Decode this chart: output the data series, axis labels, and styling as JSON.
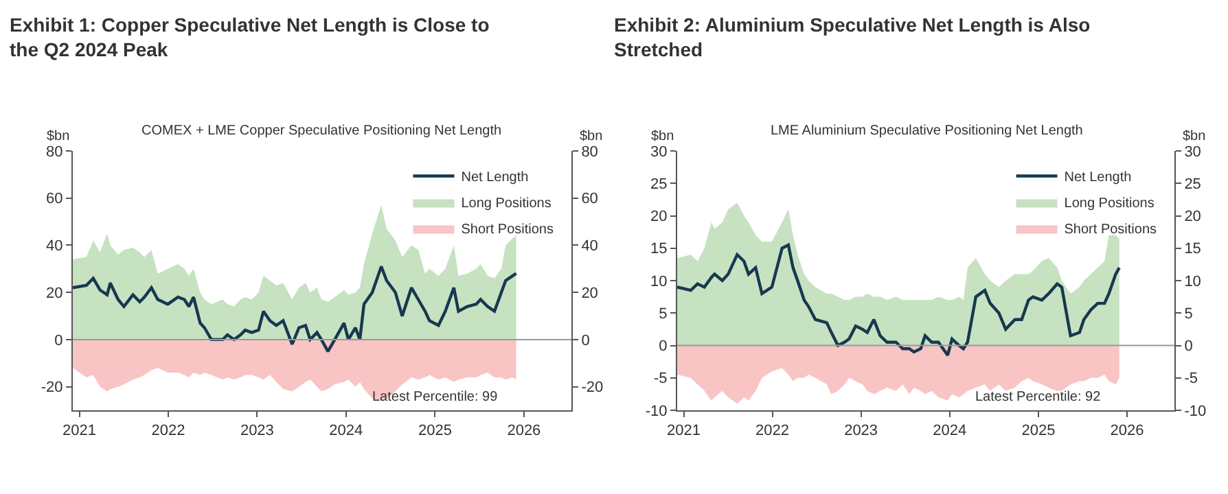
{
  "chart_data": [
    {
      "type": "area",
      "title": "Exhibit 1: Copper Speculative Net Length is Close to the Q2 2024 Peak",
      "subtitle": "COMEX + LME Copper Speculative Positioning Net Length",
      "ylabel": "$bn",
      "y2label": "$bn",
      "annotations": [
        "Latest Percentile: 99"
      ],
      "x": [
        "2020-12-05",
        "2021-01-30",
        "2021-02-27",
        "2021-03-27",
        "2021-04-25",
        "2021-05-08",
        "2021-06-09",
        "2021-07-03",
        "2021-08-09",
        "2021-09-06",
        "2021-09-25",
        "2021-10-24",
        "2021-11-19",
        "2021-12-30",
        "2022-02-10",
        "2022-03-08",
        "2022-03-27",
        "2022-04-15",
        "2022-05-12",
        "2022-05-30",
        "2022-06-27",
        "2022-08-13",
        "2022-09-01",
        "2022-09-28",
        "2022-10-25",
        "2022-11-13",
        "2022-12-10",
        "2023-01-07",
        "2023-01-27",
        "2023-02-23",
        "2023-03-21",
        "2023-04-18",
        "2023-05-25",
        "2023-06-22",
        "2023-07-19",
        "2023-08-07",
        "2023-09-04",
        "2023-09-22",
        "2023-10-19",
        "2023-11-16",
        "2023-12-24",
        "2024-01-11",
        "2024-02-09",
        "2024-02-27",
        "2024-03-15",
        "2024-04-18",
        "2024-05-25",
        "2024-06-16",
        "2024-07-22",
        "2024-08-19",
        "2024-09-26",
        "2024-10-24",
        "2024-11-21",
        "2024-12-09",
        "2025-01-15",
        "2025-02-12",
        "2025-03-19",
        "2025-04-07",
        "2025-05-13",
        "2025-06-19",
        "2025-07-07",
        "2025-08-05",
        "2025-09-02",
        "2025-09-30",
        "2025-10-18",
        "2025-11-15",
        "2025-11-30"
      ],
      "series": [
        {
          "name": "Net Length",
          "type": "line",
          "color": "#17384f",
          "values": [
            22,
            23,
            26,
            21,
            19,
            24,
            17,
            14,
            19,
            16,
            18,
            22,
            17,
            15,
            18,
            17,
            14,
            18,
            7,
            5,
            0,
            0,
            2,
            0,
            2,
            4,
            3,
            4,
            12,
            8,
            6,
            8,
            -2,
            5,
            6,
            0,
            3,
            0,
            -5,
            0,
            7,
            0,
            5,
            0,
            15,
            20,
            31,
            25,
            20,
            10,
            22,
            17,
            12,
            8,
            6,
            12,
            22,
            12,
            14,
            15,
            17,
            14,
            12,
            20,
            25,
            27,
            28
          ]
        },
        {
          "name": "Long Positions",
          "color": "#c6e2c1",
          "values": [
            34,
            35,
            42,
            37,
            45,
            40,
            36,
            38,
            39,
            37,
            35,
            38,
            28,
            30,
            32,
            30,
            27,
            30,
            20,
            17,
            15,
            17,
            15,
            14,
            17,
            18,
            17,
            20,
            27,
            25,
            23,
            24,
            17,
            22,
            24,
            20,
            22,
            17,
            16,
            18,
            21,
            19,
            20,
            22,
            32,
            45,
            57,
            47,
            42,
            35,
            40,
            38,
            28,
            30,
            27,
            30,
            40,
            27,
            28,
            30,
            32,
            27,
            26,
            30,
            40,
            43,
            44
          ]
        },
        {
          "name": "Short Positions",
          "color": "#f8c4c4",
          "values": [
            -12,
            -16,
            -15,
            -20,
            -22,
            -21,
            -20,
            -19,
            -17,
            -16,
            -15,
            -13,
            -12,
            -14,
            -14,
            -15,
            -16,
            -14,
            -15,
            -14,
            -15,
            -17,
            -16,
            -17,
            -16,
            -15,
            -15,
            -16,
            -17,
            -15,
            -18,
            -21,
            -22,
            -20,
            -18,
            -17,
            -20,
            -22,
            -21,
            -19,
            -18,
            -17,
            -20,
            -18,
            -21,
            -25,
            -26,
            -25,
            -22,
            -19,
            -16,
            -17,
            -16,
            -15,
            -17,
            -16,
            -18,
            -17,
            -16,
            -16,
            -15,
            -14,
            -16,
            -16,
            -17,
            -16,
            -17
          ]
        }
      ],
      "xlim": [
        "2020-12-05",
        "2026-07-15"
      ],
      "xticks": [
        "2021",
        "2022",
        "2023",
        "2024",
        "2025",
        "2026"
      ],
      "ylim": [
        -30,
        80
      ],
      "yticks": [
        -20,
        0,
        20,
        40,
        60,
        80
      ],
      "y2lim": [
        -30,
        80
      ],
      "y2ticks": [
        -20,
        0,
        20,
        40,
        60,
        80
      ],
      "ref_lines": [
        {
          "axis": "y",
          "value": 0,
          "color": "#999999"
        }
      ],
      "legend": "top right"
    },
    {
      "type": "area",
      "title": "Exhibit 2: Aluminium Speculative Net Length is Also Stretched",
      "subtitle": "LME Aluminium Speculative Positioning Net Length",
      "ylabel": "$bn",
      "y2label": "$bn",
      "annotations": [
        "Latest Percentile: 92"
      ],
      "x": [
        "2020-12-05",
        "2021-01-30",
        "2021-02-27",
        "2021-03-27",
        "2021-04-25",
        "2021-05-08",
        "2021-06-09",
        "2021-07-03",
        "2021-08-09",
        "2021-09-06",
        "2021-09-25",
        "2021-10-24",
        "2021-11-19",
        "2021-12-30",
        "2022-02-10",
        "2022-03-08",
        "2022-03-27",
        "2022-04-15",
        "2022-05-12",
        "2022-05-30",
        "2022-06-27",
        "2022-08-13",
        "2022-09-01",
        "2022-09-28",
        "2022-10-25",
        "2022-11-13",
        "2022-12-10",
        "2023-01-07",
        "2023-01-27",
        "2023-02-23",
        "2023-03-21",
        "2023-04-18",
        "2023-05-25",
        "2023-06-22",
        "2023-07-19",
        "2023-08-07",
        "2023-09-04",
        "2023-09-22",
        "2023-10-19",
        "2023-11-16",
        "2023-12-24",
        "2024-01-11",
        "2024-02-09",
        "2024-02-27",
        "2024-03-15",
        "2024-04-18",
        "2024-05-25",
        "2024-06-16",
        "2024-07-22",
        "2024-08-19",
        "2024-09-26",
        "2024-10-24",
        "2024-11-21",
        "2024-12-09",
        "2025-01-15",
        "2025-02-12",
        "2025-03-19",
        "2025-04-07",
        "2025-05-13",
        "2025-06-19",
        "2025-07-07",
        "2025-08-05",
        "2025-09-02",
        "2025-09-30",
        "2025-10-18",
        "2025-11-15",
        "2025-11-30"
      ],
      "series": [
        {
          "name": "Net Length",
          "type": "line",
          "color": "#17384f",
          "values": [
            9,
            8.5,
            9.5,
            9,
            10.5,
            11,
            10,
            11,
            14,
            13,
            11,
            12,
            8,
            9,
            15,
            15.5,
            12,
            10,
            7,
            6,
            4,
            3.5,
            2,
            0,
            0.5,
            1,
            3,
            2.5,
            2,
            4,
            1.5,
            0.5,
            0.5,
            -0.5,
            -0.5,
            -1,
            -0.5,
            1.5,
            0.5,
            0.5,
            -1.5,
            1,
            0,
            -0.5,
            0.5,
            7.5,
            8.5,
            6.5,
            5,
            2.5,
            4,
            4,
            7,
            7.5,
            7,
            8,
            9.5,
            9,
            1.5,
            2,
            4,
            5.5,
            6.5,
            6.5,
            8,
            11,
            12
          ]
        },
        {
          "name": "Long Positions",
          "color": "#c6e2c1",
          "values": [
            13.5,
            14,
            13,
            15,
            19,
            18,
            19,
            21,
            22,
            20,
            19,
            17,
            16,
            16,
            19,
            21,
            17,
            14,
            11,
            10,
            9,
            8,
            8,
            7.5,
            7,
            7,
            7.5,
            7.5,
            8,
            7.5,
            7.5,
            7,
            7.5,
            7,
            7,
            7,
            7,
            7,
            7,
            7.5,
            7,
            7,
            7.5,
            7,
            12,
            13.5,
            11,
            10,
            9,
            10,
            11,
            11,
            11,
            11.5,
            13,
            13.5,
            12,
            10,
            8,
            9,
            10,
            11,
            12,
            13,
            17,
            17,
            16.5
          ]
        },
        {
          "name": "Short Positions",
          "color": "#f8c4c4",
          "values": [
            -4.5,
            -5,
            -6,
            -7,
            -8.5,
            -8,
            -7,
            -8,
            -9,
            -8,
            -8.5,
            -7,
            -5,
            -4,
            -3.5,
            -4.5,
            -5.5,
            -5,
            -5,
            -4.5,
            -5,
            -6,
            -7.5,
            -7,
            -6,
            -5,
            -5.5,
            -6,
            -7,
            -7.5,
            -7,
            -6.5,
            -7,
            -6,
            -7.5,
            -6.5,
            -7,
            -7.5,
            -7,
            -8,
            -8.5,
            -7.5,
            -8,
            -7.5,
            -7,
            -6.5,
            -6,
            -7,
            -6,
            -7,
            -6.5,
            -5.5,
            -5,
            -5.5,
            -6,
            -6.5,
            -7,
            -7,
            -6,
            -5.5,
            -5.5,
            -5,
            -5,
            -4.5,
            -5.5,
            -6,
            -5
          ]
        }
      ],
      "xlim": [
        "2020-12-05",
        "2026-07-15"
      ],
      "xticks": [
        "2021",
        "2022",
        "2023",
        "2024",
        "2025",
        "2026"
      ],
      "ylim": [
        -10,
        30
      ],
      "yticks": [
        -10,
        -5,
        0,
        5,
        10,
        15,
        20,
        25,
        30
      ],
      "y2lim": [
        -10,
        30
      ],
      "y2ticks": [
        -10,
        -5,
        0,
        5,
        10,
        15,
        20,
        25,
        30
      ],
      "ref_lines": [
        {
          "axis": "y",
          "value": 0,
          "color": "#999999"
        }
      ],
      "legend": "top right"
    }
  ]
}
